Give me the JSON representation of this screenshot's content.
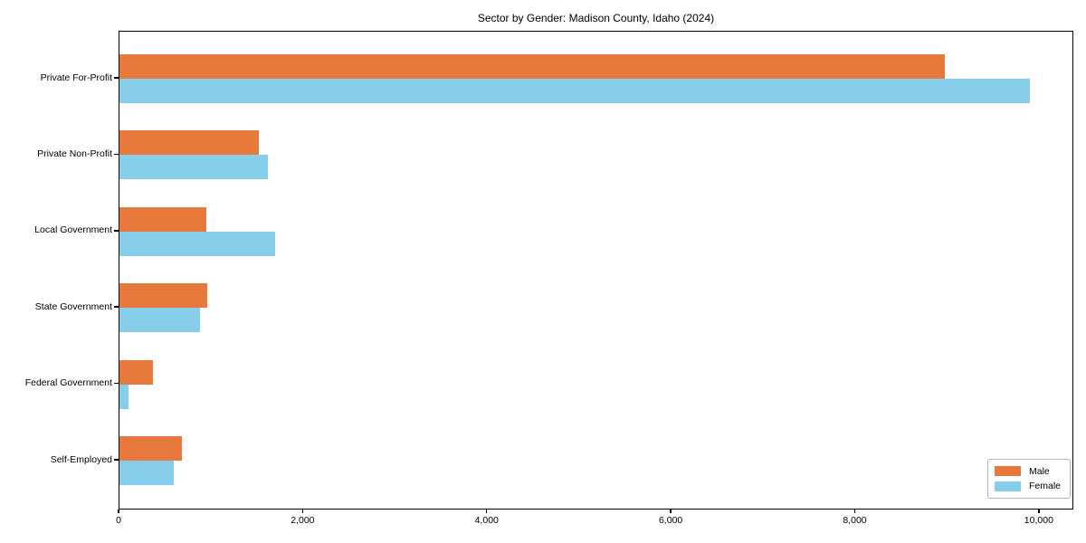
{
  "title": "Sector by Gender: Madison County, Idaho (2024)",
  "chart_data": {
    "type": "bar",
    "orientation": "horizontal",
    "title": "Sector by Gender: Madison County, Idaho (2024)",
    "categories": [
      "Private For-Profit",
      "Private Non-Profit",
      "Local Government",
      "State Government",
      "Federal Government",
      "Self-Employed"
    ],
    "series": [
      {
        "name": "Male",
        "color": "#e8793d",
        "values": [
          8970,
          1510,
          940,
          950,
          360,
          680
        ]
      },
      {
        "name": "Female",
        "color": "#87ceeb",
        "values": [
          9890,
          1610,
          1690,
          870,
          100,
          590
        ]
      }
    ],
    "xlabel": "",
    "ylabel": "",
    "xlim": [
      0,
      10375
    ],
    "x_ticks": [
      0,
      2000,
      4000,
      6000,
      8000,
      10000
    ],
    "x_tick_labels": [
      "0",
      "2,000",
      "4,000",
      "6,000",
      "8,000",
      "10,000"
    ],
    "grid": false,
    "legend_position": "lower right",
    "background": "#ffffff"
  },
  "legend": {
    "items": [
      {
        "label": "Male",
        "color": "#e8793d"
      },
      {
        "label": "Female",
        "color": "#87ceeb"
      }
    ]
  }
}
